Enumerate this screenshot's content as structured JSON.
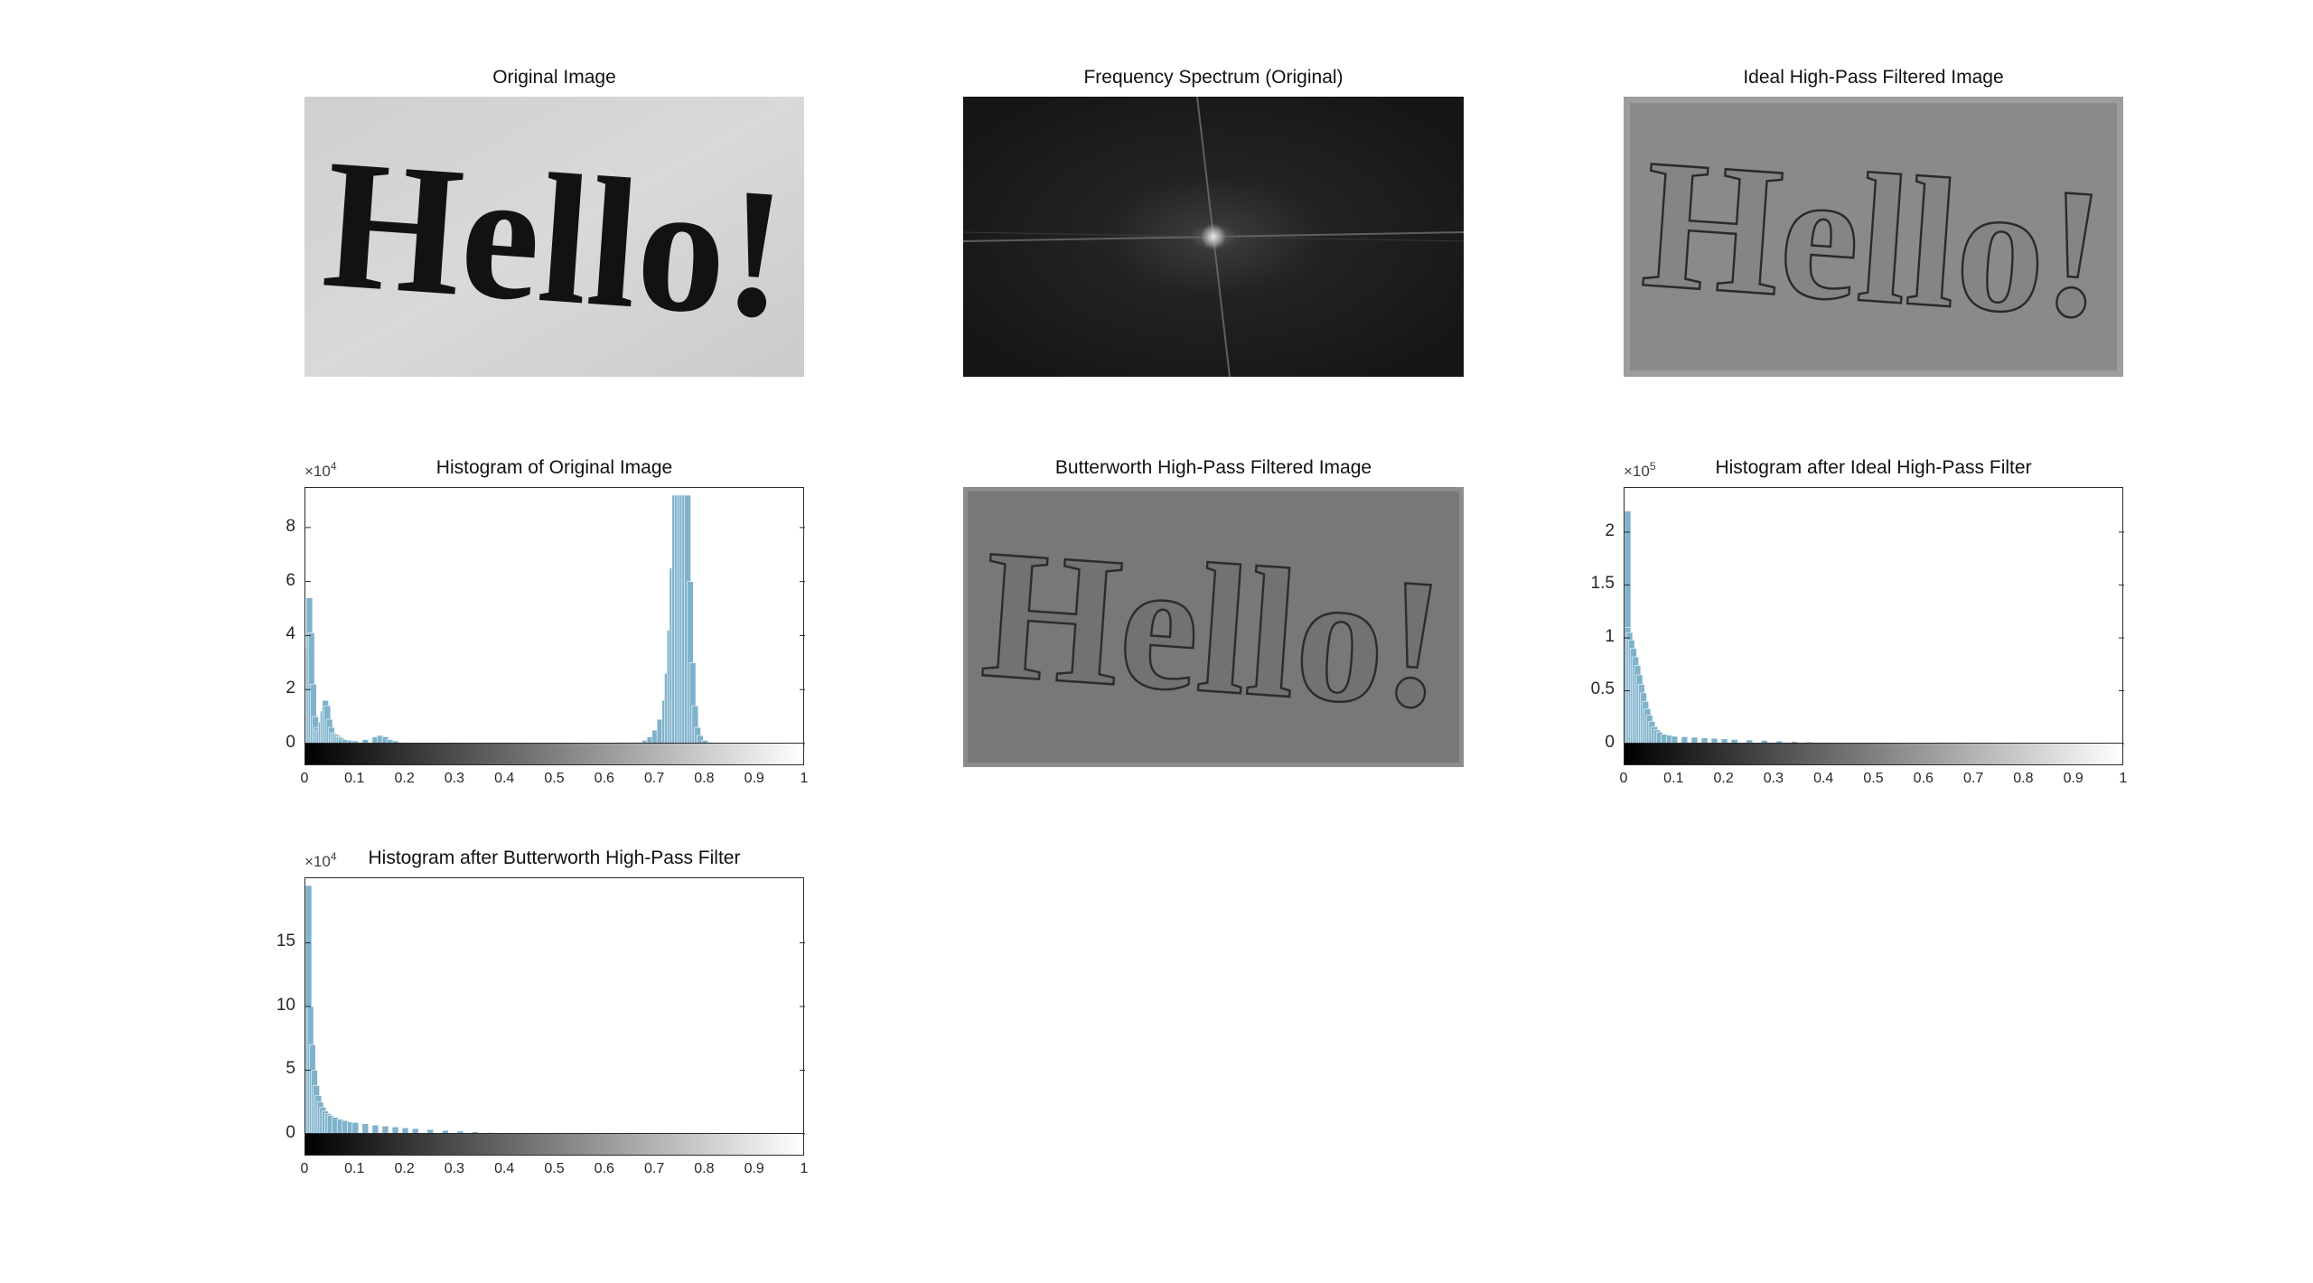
{
  "figure": {
    "panels": [
      {
        "id": "original",
        "title": "Original Image",
        "kind": "image",
        "text": "Hello!",
        "style": "photo"
      },
      {
        "id": "spectrum",
        "title": "Frequency Spectrum (Original)",
        "kind": "image",
        "style": "spectrum"
      },
      {
        "id": "ideal",
        "title": "Ideal High-Pass Filtered Image",
        "kind": "image",
        "text": "Hello!",
        "style": "highpass-ringing"
      },
      {
        "id": "butterworth",
        "title": "Butterworth High-Pass Filtered Image",
        "kind": "image",
        "text": "Hello!",
        "style": "highpass-smooth"
      }
    ]
  },
  "chart_data": [
    {
      "type": "bar",
      "id": "hist-original",
      "title": "Histogram of Original Image",
      "multiplier": "×10",
      "exponent": "4",
      "xlim": [
        0,
        1
      ],
      "ylim": [
        0,
        9.2
      ],
      "xticks": [
        "0",
        "0.1",
        "0.2",
        "0.3",
        "0.4",
        "0.5",
        "0.6",
        "0.7",
        "0.8",
        "0.9",
        "1"
      ],
      "yticks": [
        {
          "v": 0,
          "label": "0"
        },
        {
          "v": 2,
          "label": "2"
        },
        {
          "v": 4,
          "label": "4"
        },
        {
          "v": 6,
          "label": "6"
        },
        {
          "v": 8,
          "label": "8"
        }
      ],
      "colorbar": true,
      "bar_color": "#7fb2cb",
      "x": [
        0.004,
        0.008,
        0.012,
        0.016,
        0.02,
        0.024,
        0.028,
        0.032,
        0.036,
        0.04,
        0.044,
        0.048,
        0.052,
        0.056,
        0.06,
        0.064,
        0.068,
        0.072,
        0.08,
        0.09,
        0.1,
        0.12,
        0.14,
        0.15,
        0.16,
        0.17,
        0.18,
        0.2,
        0.66,
        0.68,
        0.69,
        0.7,
        0.71,
        0.72,
        0.725,
        0.73,
        0.735,
        0.74,
        0.745,
        0.75,
        0.755,
        0.76,
        0.765,
        0.77,
        0.775,
        0.78,
        0.785,
        0.79,
        0.8,
        0.81
      ],
      "values": [
        3.5,
        5.4,
        4.1,
        2.2,
        1.0,
        0.6,
        0.5,
        0.8,
        1.2,
        1.6,
        1.4,
        0.9,
        0.6,
        0.4,
        0.35,
        0.3,
        0.25,
        0.2,
        0.15,
        0.12,
        0.1,
        0.15,
        0.25,
        0.3,
        0.25,
        0.15,
        0.1,
        0.05,
        0.05,
        0.12,
        0.25,
        0.5,
        0.9,
        1.6,
        2.6,
        4.2,
        6.5,
        9.2,
        9.2,
        9.2,
        9.2,
        9.2,
        9.2,
        6.0,
        3.0,
        1.4,
        0.6,
        0.3,
        0.12,
        0.05
      ]
    },
    {
      "type": "bar",
      "id": "hist-ideal",
      "title": "Histogram after Ideal High-Pass Filter",
      "multiplier": "×10",
      "exponent": "5",
      "xlim": [
        0,
        1
      ],
      "ylim": [
        0,
        2.35
      ],
      "xticks": [
        "0",
        "0.1",
        "0.2",
        "0.3",
        "0.4",
        "0.5",
        "0.6",
        "0.7",
        "0.8",
        "0.9",
        "1"
      ],
      "yticks": [
        {
          "v": 0,
          "label": "0"
        },
        {
          "v": 0.5,
          "label": "0.5"
        },
        {
          "v": 1,
          "label": "1"
        },
        {
          "v": 1.5,
          "label": "1.5"
        },
        {
          "v": 2,
          "label": "2"
        }
      ],
      "colorbar": true,
      "bar_color": "#7fb2cb",
      "x": [
        0.002,
        0.006,
        0.01,
        0.014,
        0.018,
        0.022,
        0.026,
        0.03,
        0.034,
        0.038,
        0.042,
        0.046,
        0.05,
        0.055,
        0.06,
        0.065,
        0.07,
        0.08,
        0.09,
        0.1,
        0.12,
        0.14,
        0.16,
        0.18,
        0.2,
        0.22,
        0.25,
        0.28,
        0.31,
        0.34,
        0.37,
        0.4
      ],
      "values": [
        2.2,
        1.1,
        1.05,
        0.98,
        0.9,
        0.82,
        0.74,
        0.65,
        0.56,
        0.48,
        0.4,
        0.33,
        0.27,
        0.21,
        0.16,
        0.13,
        0.11,
        0.09,
        0.08,
        0.07,
        0.065,
        0.06,
        0.055,
        0.05,
        0.045,
        0.04,
        0.035,
        0.03,
        0.025,
        0.02,
        0.015,
        0.01
      ]
    },
    {
      "type": "bar",
      "id": "hist-butterworth",
      "title": "Histogram after Butterworth High-Pass Filter",
      "multiplier": "×10",
      "exponent": "4",
      "xlim": [
        0,
        1
      ],
      "ylim": [
        0,
        19.5
      ],
      "xticks": [
        "0",
        "0.1",
        "0.2",
        "0.3",
        "0.4",
        "0.5",
        "0.6",
        "0.7",
        "0.8",
        "0.9",
        "1"
      ],
      "yticks": [
        {
          "v": 0,
          "label": "0"
        },
        {
          "v": 5,
          "label": "5"
        },
        {
          "v": 10,
          "label": "10"
        },
        {
          "v": 15,
          "label": "15"
        }
      ],
      "colorbar": true,
      "bar_color": "#7fb2cb",
      "x": [
        0.002,
        0.006,
        0.01,
        0.014,
        0.018,
        0.022,
        0.026,
        0.03,
        0.035,
        0.04,
        0.045,
        0.05,
        0.06,
        0.07,
        0.08,
        0.09,
        0.1,
        0.12,
        0.14,
        0.16,
        0.18,
        0.2,
        0.22,
        0.25,
        0.28,
        0.31,
        0.34,
        0.37,
        0.4,
        0.43
      ],
      "values": [
        19.5,
        15.0,
        10.0,
        7.0,
        5.0,
        3.8,
        3.0,
        2.5,
        2.1,
        1.8,
        1.6,
        1.45,
        1.3,
        1.15,
        1.05,
        0.95,
        0.9,
        0.8,
        0.7,
        0.62,
        0.55,
        0.48,
        0.42,
        0.35,
        0.28,
        0.22,
        0.17,
        0.12,
        0.08,
        0.05
      ]
    }
  ]
}
